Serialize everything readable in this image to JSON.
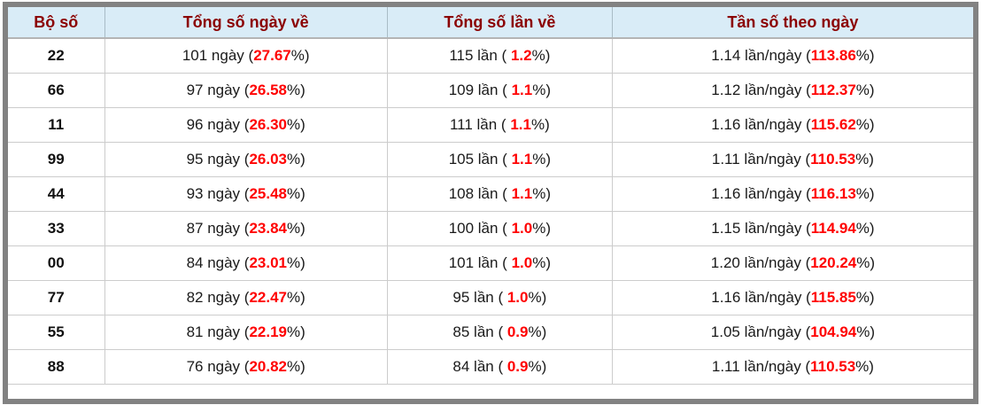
{
  "colors": {
    "header_bg": "#d9ecf7",
    "header_text": "#8b0000",
    "value_red": "#ff0000",
    "frame_gray": "#828282",
    "row_border": "#cccccc"
  },
  "table": {
    "headers": [
      "Bộ số",
      "Tổng số ngày về",
      "Tổng số lần về",
      "Tần số theo ngày"
    ],
    "percent_suffix": "%)",
    "rows": [
      {
        "pair": "22",
        "days_prefix": "101 ngày (",
        "days_value": "27.67",
        "times_prefix": "115 lần ( ",
        "times_value": "1.2",
        "freq_prefix": "1.14 lần/ngày (",
        "freq_value": "113.86"
      },
      {
        "pair": "66",
        "days_prefix": "97 ngày (",
        "days_value": "26.58",
        "times_prefix": "109 lần ( ",
        "times_value": "1.1",
        "freq_prefix": "1.12 lần/ngày (",
        "freq_value": "112.37"
      },
      {
        "pair": "11",
        "days_prefix": "96 ngày (",
        "days_value": "26.30",
        "times_prefix": "111 lần ( ",
        "times_value": "1.1",
        "freq_prefix": "1.16 lần/ngày (",
        "freq_value": "115.62"
      },
      {
        "pair": "99",
        "days_prefix": "95 ngày (",
        "days_value": "26.03",
        "times_prefix": "105 lần ( ",
        "times_value": "1.1",
        "freq_prefix": "1.11 lần/ngày (",
        "freq_value": "110.53"
      },
      {
        "pair": "44",
        "days_prefix": "93 ngày (",
        "days_value": "25.48",
        "times_prefix": "108 lần ( ",
        "times_value": "1.1",
        "freq_prefix": "1.16 lần/ngày (",
        "freq_value": "116.13"
      },
      {
        "pair": "33",
        "days_prefix": "87 ngày (",
        "days_value": "23.84",
        "times_prefix": "100 lần ( ",
        "times_value": "1.0",
        "freq_prefix": "1.15 lần/ngày (",
        "freq_value": "114.94"
      },
      {
        "pair": "00",
        "days_prefix": "84 ngày (",
        "days_value": "23.01",
        "times_prefix": "101 lần ( ",
        "times_value": "1.0",
        "freq_prefix": "1.20 lần/ngày (",
        "freq_value": "120.24"
      },
      {
        "pair": "77",
        "days_prefix": "82 ngày (",
        "days_value": "22.47",
        "times_prefix": "95 lần ( ",
        "times_value": "1.0",
        "freq_prefix": "1.16 lần/ngày (",
        "freq_value": "115.85"
      },
      {
        "pair": "55",
        "days_prefix": "81 ngày (",
        "days_value": "22.19",
        "times_prefix": "85 lần ( ",
        "times_value": "0.9",
        "freq_prefix": "1.05 lần/ngày (",
        "freq_value": "104.94"
      },
      {
        "pair": "88",
        "days_prefix": "76 ngày (",
        "days_value": "20.82",
        "times_prefix": "84 lần ( ",
        "times_value": "0.9",
        "freq_prefix": "1.11 lần/ngày (",
        "freq_value": "110.53"
      }
    ]
  }
}
